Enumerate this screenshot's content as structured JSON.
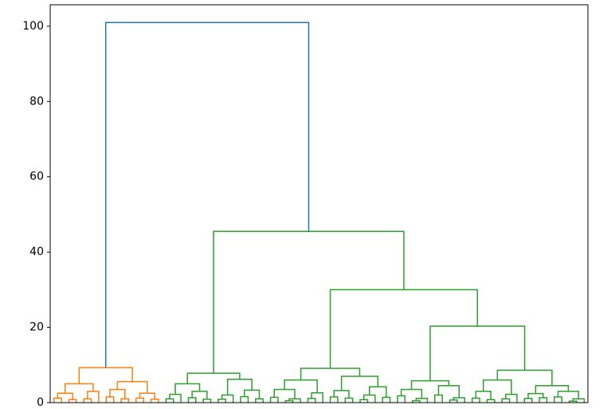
{
  "chart_data": {
    "type": "dendrogram",
    "ylim": [
      0,
      105.7
    ],
    "yticks": [
      0,
      20,
      40,
      60,
      80,
      100
    ],
    "color_threshold": 70,
    "above_threshold_color": "#1f77b4",
    "cluster_colors": [
      "#ff7f0e",
      "#2ca02c"
    ],
    "tree": [
      101,
      [
        9.3,
        [
          5.0,
          [
            2.5,
            [
              1.2,
              0,
              0
            ],
            [
              0.8,
              0,
              0
            ]
          ],
          [
            3.0,
            [
              1.0,
              0,
              0
            ],
            0
          ]
        ],
        [
          5.6,
          [
            3.5,
            [
              1.5,
              0,
              0
            ],
            [
              1.0,
              0,
              0
            ]
          ],
          [
            2.5,
            [
              1.2,
              0,
              0
            ],
            [
              0.9,
              0,
              0
            ]
          ]
        ]
      ],
      [
        45.5,
        [
          7.8,
          [
            5.0,
            [
              2.2,
              [
                1.0,
                0,
                0
              ],
              0
            ],
            [
              3.0,
              [
                1.3,
                0,
                0
              ],
              [
                0.9,
                0,
                0
              ]
            ]
          ],
          [
            6.2,
            [
              2.0,
              [
                0.9,
                0,
                0
              ],
              0
            ],
            [
              3.3,
              [
                1.6,
                0,
                0
              ],
              [
                1.0,
                0,
                0
              ]
            ]
          ]
        ],
        [
          30,
          [
            9.1,
            [
              6.0,
              [
                3.5,
                [
                  1.4,
                  0,
                  0
                ],
                [
                  1.0,
                  [
                    0.5,
                    0,
                    0
                  ],
                  0
                ]
              ],
              [
                2.6,
                [
                  1.1,
                  0,
                  0
                ],
                0
              ]
            ],
            [
              7.0,
              [
                3.2,
                [
                  1.5,
                  0,
                  0
                ],
                [
                  1.2,
                  0,
                  0
                ]
              ],
              [
                4.2,
                [
                  2.0,
                  [
                    0.8,
                    0,
                    0
                  ],
                  0
                ],
                [
                  1.4,
                  0,
                  0
                ]
              ]
            ]
          ],
          [
            20.3,
            [
              5.8,
              [
                3.5,
                [
                  1.8,
                  0,
                  0
                ],
                [
                  1.1,
                  [
                    0.5,
                    0,
                    0
                  ],
                  0
                ]
              ],
              [
                4.5,
                [
                  2.0,
                  0,
                  0
                ],
                [
                  1.3,
                  [
                    0.7,
                    0,
                    0
                  ],
                  0
                ]
              ]
            ],
            [
              8.6,
              [
                6.0,
                [
                  3.0,
                  [
                    1.2,
                    0,
                    0
                  ],
                  [
                    0.8,
                    0,
                    0
                  ]
                ],
                [
                  2.2,
                  [
                    1.0,
                    0,
                    0
                  ],
                  0
                ]
              ],
              [
                4.5,
                [
                  2.4,
                  [
                    1.1,
                    0,
                    0
                  ],
                  [
                    1.3,
                    0,
                    0
                  ]
                ],
                [
                  3.0,
                  [
                    1.5,
                    0,
                    0
                  ],
                  [
                    1.0,
                    [
                      0.4,
                      0,
                      0
                    ],
                    0
                  ]
                ]
              ]
            ]
          ]
        ]
      ]
    ]
  }
}
